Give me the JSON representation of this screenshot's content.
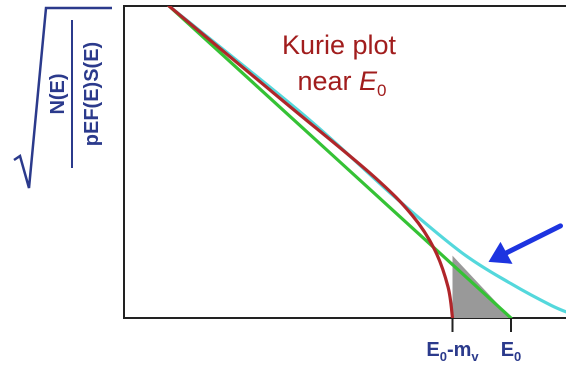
{
  "chart_data": {
    "type": "line",
    "title": {
      "line1": "Kurie plot",
      "line2_prefix": "near ",
      "line2_var": "E",
      "line2_sub": "0"
    },
    "ylabel": {
      "numerator": "N(E)",
      "denominator": "pEF(E)S(E)"
    },
    "xticks": [
      {
        "main": "E",
        "sub1": "0",
        "mid": "-m",
        "sub2": "v",
        "x": 0.73
      },
      {
        "main": "E",
        "sub1": "0",
        "mid": "",
        "sub2": "",
        "x": 0.86
      }
    ],
    "xlim": [
      0,
      1
    ],
    "ylim": [
      0,
      1
    ],
    "series": [
      {
        "color": "#b0262a",
        "points": [
          [
            0.1,
            1.0
          ],
          [
            0.35,
            0.7
          ],
          [
            0.55,
            0.46
          ],
          [
            0.64,
            0.33
          ],
          [
            0.69,
            0.22
          ],
          [
            0.72,
            0.1
          ],
          [
            0.73,
            0.0
          ]
        ]
      },
      {
        "color": "#35c235",
        "points": [
          [
            0.1,
            1.0
          ],
          [
            0.86,
            0.0
          ]
        ]
      },
      {
        "color": "#54d8dc",
        "points": [
          [
            0.1,
            1.0
          ],
          [
            0.4,
            0.65
          ],
          [
            0.6,
            0.39
          ],
          [
            0.75,
            0.21
          ],
          [
            0.86,
            0.11
          ],
          [
            0.95,
            0.04
          ],
          [
            1.0,
            0.01
          ]
        ]
      }
    ],
    "shaded_region": {
      "color": "#999999",
      "points": [
        [
          0.73,
          0.0
        ],
        [
          0.73,
          0.2
        ],
        [
          0.86,
          0.0
        ]
      ]
    },
    "annotation_arrow": {
      "color": "#1d34e0",
      "points_to": [
        0.81,
        0.18
      ]
    },
    "grid": false,
    "legend": "none"
  }
}
